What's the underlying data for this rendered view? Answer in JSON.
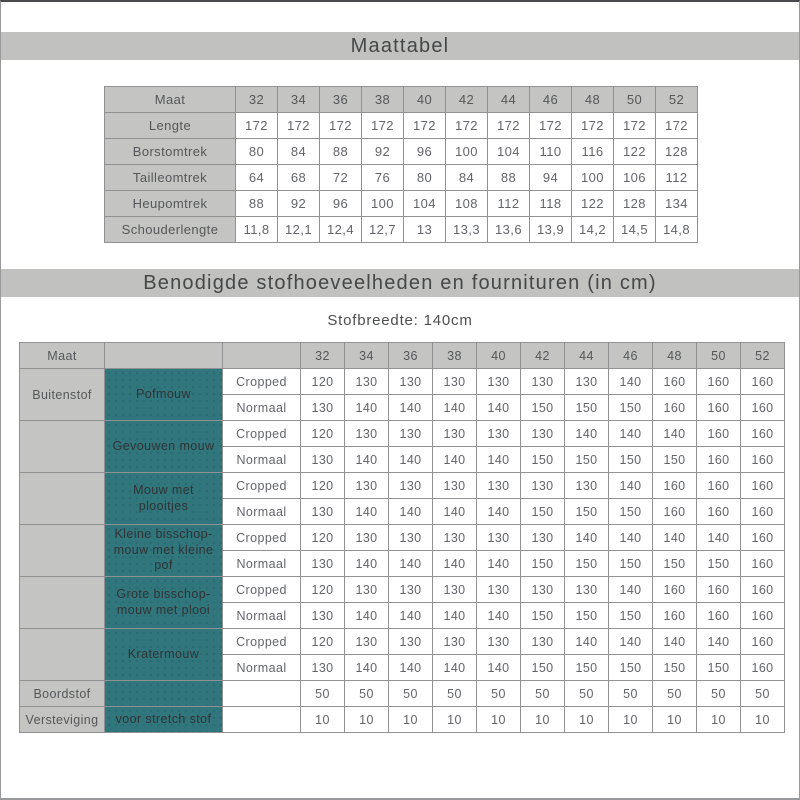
{
  "page": {
    "title1": "Maattabel",
    "title2": "Benodigde stofhoeveelheden en fournituren (in cm)",
    "fabric_width_label": "Stofbreedte: 140cm"
  },
  "colors": {
    "band_gray": "#c1c1bf",
    "cell_gray": "#c4c4c2",
    "teal": "#30767c",
    "border_gray": "#8f9193",
    "text_gray": "#636569"
  },
  "size_table": {
    "header_label": "Maat",
    "sizes": [
      "32",
      "34",
      "36",
      "38",
      "40",
      "42",
      "44",
      "46",
      "48",
      "50",
      "52"
    ],
    "rows": [
      {
        "label": "Lengte",
        "values": [
          "172",
          "172",
          "172",
          "172",
          "172",
          "172",
          "172",
          "172",
          "172",
          "172",
          "172"
        ]
      },
      {
        "label": "Borstomtrek",
        "values": [
          "80",
          "84",
          "88",
          "92",
          "96",
          "100",
          "104",
          "110",
          "116",
          "122",
          "128"
        ]
      },
      {
        "label": "Tailleomtrek",
        "values": [
          "64",
          "68",
          "72",
          "76",
          "80",
          "84",
          "88",
          "94",
          "100",
          "106",
          "112"
        ]
      },
      {
        "label": "Heupomtrek",
        "values": [
          "88",
          "92",
          "96",
          "100",
          "104",
          "108",
          "112",
          "118",
          "122",
          "128",
          "134"
        ]
      },
      {
        "label": "Schouderlengte",
        "values": [
          "11,8",
          "12,1",
          "12,4",
          "12,7",
          "13",
          "13,3",
          "13,6",
          "13,9",
          "14,2",
          "14,5",
          "14,8"
        ]
      }
    ]
  },
  "fabric_table": {
    "header_label": "Maat",
    "sizes": [
      "32",
      "34",
      "36",
      "38",
      "40",
      "42",
      "44",
      "46",
      "48",
      "50",
      "52"
    ],
    "groups": [
      {
        "category": "Buitenstof",
        "sleeve": "Pofmouw",
        "variants": [
          {
            "label": "Cropped",
            "values": [
              "120",
              "130",
              "130",
              "130",
              "130",
              "130",
              "130",
              "140",
              "160",
              "160",
              "160"
            ]
          },
          {
            "label": "Normaal",
            "values": [
              "130",
              "140",
              "140",
              "140",
              "140",
              "150",
              "150",
              "150",
              "160",
              "160",
              "160"
            ]
          }
        ]
      },
      {
        "category": "",
        "sleeve": "Gevouwen mouw",
        "variants": [
          {
            "label": "Cropped",
            "values": [
              "120",
              "130",
              "130",
              "130",
              "130",
              "130",
              "140",
              "140",
              "140",
              "160",
              "160"
            ]
          },
          {
            "label": "Normaal",
            "values": [
              "130",
              "140",
              "140",
              "140",
              "140",
              "150",
              "150",
              "150",
              "150",
              "160",
              "160"
            ]
          }
        ]
      },
      {
        "category": "",
        "sleeve": "Mouw met plooitjes",
        "variants": [
          {
            "label": "Cropped",
            "values": [
              "120",
              "130",
              "130",
              "130",
              "130",
              "130",
              "130",
              "140",
              "160",
              "160",
              "160"
            ]
          },
          {
            "label": "Normaal",
            "values": [
              "130",
              "140",
              "140",
              "140",
              "140",
              "150",
              "150",
              "150",
              "160",
              "160",
              "160"
            ]
          }
        ]
      },
      {
        "category": "",
        "sleeve": "Kleine bisschop-mouw met kleine pof",
        "variants": [
          {
            "label": "Cropped",
            "values": [
              "120",
              "130",
              "130",
              "130",
              "130",
              "130",
              "140",
              "140",
              "140",
              "140",
              "160"
            ]
          },
          {
            "label": "Normaal",
            "values": [
              "130",
              "140",
              "140",
              "140",
              "140",
              "150",
              "150",
              "150",
              "150",
              "150",
              "160"
            ]
          }
        ]
      },
      {
        "category": "",
        "sleeve": "Grote bisschop-mouw met plooi",
        "variants": [
          {
            "label": "Cropped",
            "values": [
              "120",
              "130",
              "130",
              "130",
              "130",
              "130",
              "130",
              "140",
              "160",
              "160",
              "160"
            ]
          },
          {
            "label": "Normaal",
            "values": [
              "130",
              "140",
              "140",
              "140",
              "140",
              "150",
              "150",
              "150",
              "160",
              "160",
              "160"
            ]
          }
        ]
      },
      {
        "category": "",
        "sleeve": "Kratermouw",
        "variants": [
          {
            "label": "Cropped",
            "values": [
              "120",
              "130",
              "130",
              "130",
              "130",
              "130",
              "140",
              "140",
              "140",
              "140",
              "160"
            ]
          },
          {
            "label": "Normaal",
            "values": [
              "130",
              "140",
              "140",
              "140",
              "140",
              "150",
              "150",
              "150",
              "150",
              "150",
              "160"
            ]
          }
        ]
      }
    ],
    "extra_rows": [
      {
        "category": "Boordstof",
        "sleeve": "",
        "variant": "",
        "values": [
          "50",
          "50",
          "50",
          "50",
          "50",
          "50",
          "50",
          "50",
          "50",
          "50",
          "50"
        ]
      },
      {
        "category": "Versteviging",
        "sleeve": "voor stretch stof",
        "variant": "",
        "values": [
          "10",
          "10",
          "10",
          "10",
          "10",
          "10",
          "10",
          "10",
          "10",
          "10",
          "10"
        ]
      }
    ]
  }
}
